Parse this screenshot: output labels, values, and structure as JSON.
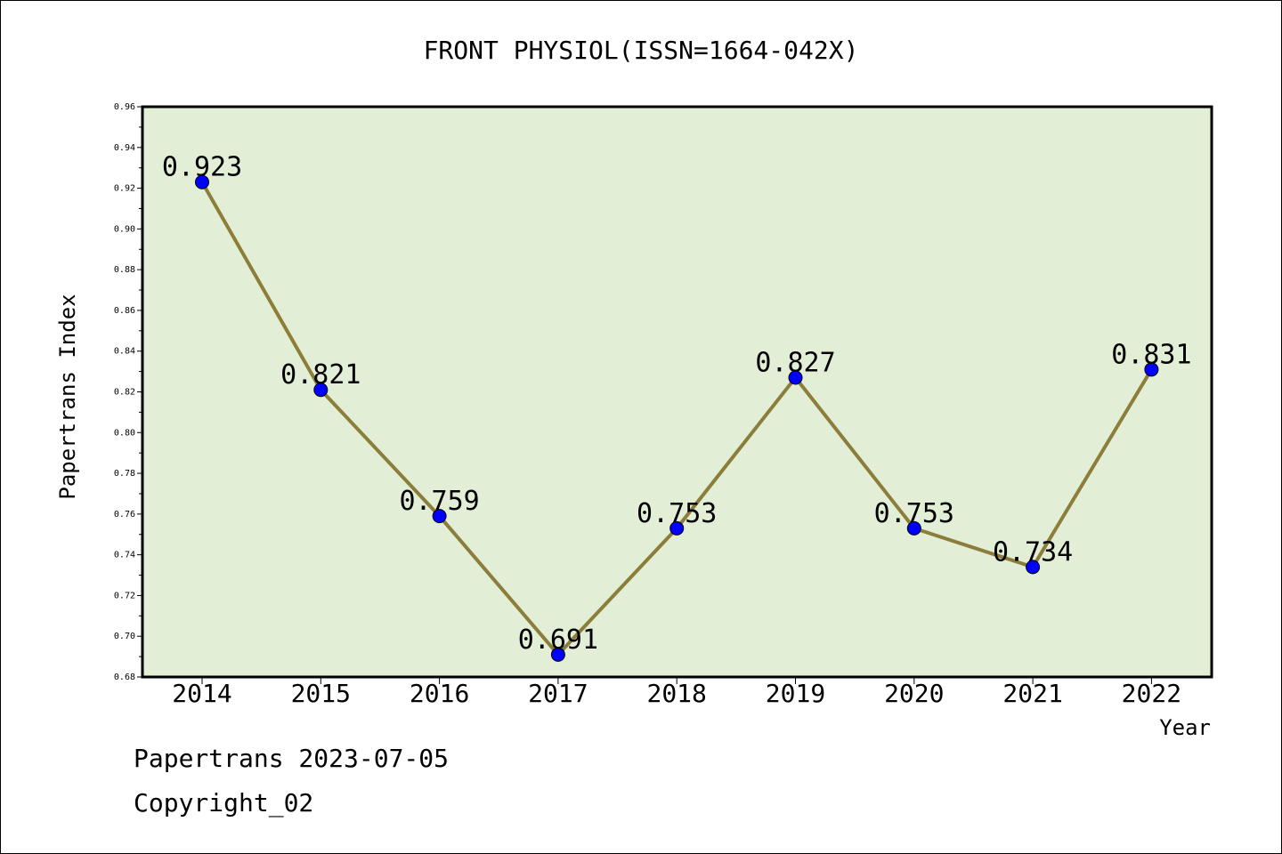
{
  "chart_data": {
    "type": "line",
    "title": "FRONT PHYSIOL(ISSN=1664-042X)",
    "xlabel": "Year",
    "ylabel": "Papertrans Index",
    "categories": [
      "2014",
      "2015",
      "2016",
      "2017",
      "2018",
      "2019",
      "2020",
      "2021",
      "2022"
    ],
    "series": [
      {
        "values": [
          0.923,
          0.821,
          0.759,
          0.691,
          0.753,
          0.827,
          0.753,
          0.734,
          0.831
        ]
      }
    ],
    "data_labels": [
      "0.923",
      "0.821",
      "0.759",
      "0.691",
      "0.753",
      "0.827",
      "0.753",
      "0.734",
      "0.831"
    ],
    "ylim": [
      0.68,
      0.96
    ],
    "yticks": [
      "0.68",
      "0.70",
      "0.72",
      "0.74",
      "0.76",
      "0.78",
      "0.80",
      "0.82",
      "0.84",
      "0.86",
      "0.88",
      "0.90",
      "0.92",
      "0.94",
      "0.96"
    ],
    "grid": false,
    "legend": "none",
    "colors": {
      "plot_background": "#e2efd6",
      "line": "#8b7d3a",
      "marker": "#0000ff"
    }
  },
  "footer": {
    "line1": "Papertrans 2023-07-05",
    "line2": "Copyright_02"
  }
}
